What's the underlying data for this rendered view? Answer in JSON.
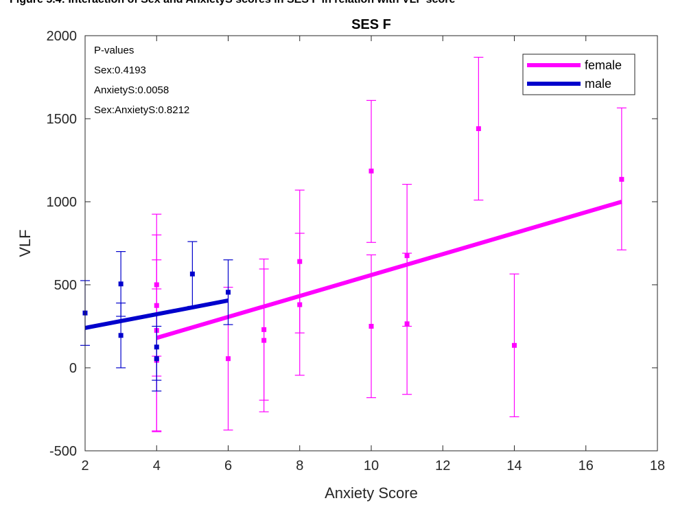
{
  "caption": "Figure 5.4: Interaction of Sex and AnxietyS scores in SES F in relation with VLF score",
  "chart_data": {
    "type": "scatter",
    "title": "SES F",
    "xlabel": "Anxiety Score",
    "ylabel": "VLF",
    "xlim": [
      2,
      18
    ],
    "ylim": [
      -500,
      2000
    ],
    "xticks": [
      2,
      4,
      6,
      8,
      10,
      12,
      14,
      16,
      18
    ],
    "yticks": [
      -500,
      0,
      500,
      1000,
      1500,
      2000
    ],
    "grid": false,
    "legend_position": "top-right",
    "annotations": [
      "P-values",
      "Sex:0.4193",
      "AnxietyS:0.0058",
      "Sex:AnxietyS:0.8212"
    ],
    "series": [
      {
        "name": "female",
        "color": "#ff00ff",
        "points": [
          {
            "x": 4,
            "y": 500,
            "lo": 70,
            "hi": 925
          },
          {
            "x": 4,
            "y": 375,
            "lo": -50,
            "hi": 800
          },
          {
            "x": 4,
            "y": 225,
            "lo": -380,
            "hi": 650
          },
          {
            "x": 4,
            "y": 45,
            "lo": -385,
            "hi": 475
          },
          {
            "x": 6,
            "y": 55,
            "lo": -375,
            "hi": 485
          },
          {
            "x": 7,
            "y": 230,
            "lo": -195,
            "hi": 655
          },
          {
            "x": 7,
            "y": 165,
            "lo": -265,
            "hi": 595
          },
          {
            "x": 8,
            "y": 640,
            "lo": 210,
            "hi": 1070
          },
          {
            "x": 8,
            "y": 380,
            "lo": -45,
            "hi": 810
          },
          {
            "x": 10,
            "y": 1185,
            "lo": 755,
            "hi": 1610
          },
          {
            "x": 10,
            "y": 250,
            "lo": -180,
            "hi": 680
          },
          {
            "x": 11,
            "y": 675,
            "lo": 250,
            "hi": 1105
          },
          {
            "x": 11,
            "y": 265,
            "lo": -160,
            "hi": 690
          },
          {
            "x": 13,
            "y": 1440,
            "lo": 1010,
            "hi": 1870
          },
          {
            "x": 14,
            "y": 135,
            "lo": -295,
            "hi": 565
          },
          {
            "x": 17,
            "y": 1135,
            "lo": 710,
            "hi": 1565
          }
        ],
        "fit": {
          "x": [
            4,
            17
          ],
          "y": [
            180,
            1000
          ]
        }
      },
      {
        "name": "male",
        "color": "#0000cc",
        "points": [
          {
            "x": 2,
            "y": 330,
            "lo": 135,
            "hi": 525
          },
          {
            "x": 3,
            "y": 505,
            "lo": 310,
            "hi": 700
          },
          {
            "x": 3,
            "y": 195,
            "lo": 0,
            "hi": 390
          },
          {
            "x": 4,
            "y": 125,
            "lo": -75,
            "hi": 320
          },
          {
            "x": 4,
            "y": 55,
            "lo": -140,
            "hi": 250
          },
          {
            "x": 5,
            "y": 565,
            "lo": 370,
            "hi": 760
          },
          {
            "x": 6,
            "y": 455,
            "lo": 260,
            "hi": 650
          }
        ],
        "fit": {
          "x": [
            2,
            6
          ],
          "y": [
            240,
            405
          ]
        }
      }
    ]
  }
}
